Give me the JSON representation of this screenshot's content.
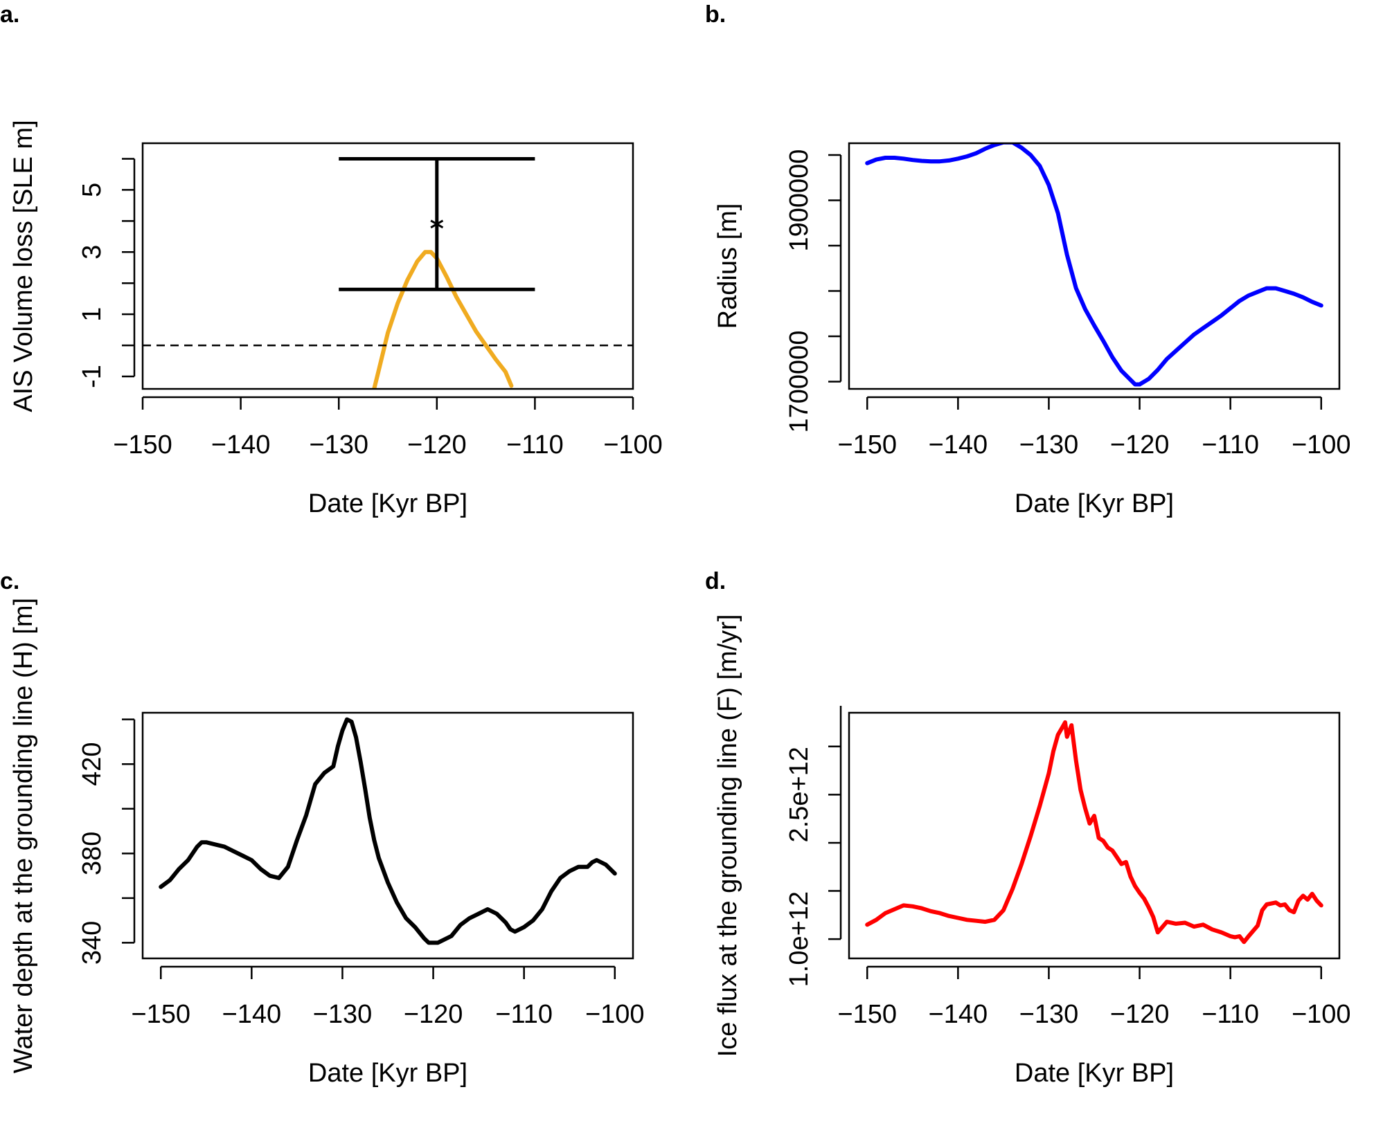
{
  "chart_data": [
    {
      "panel": "a.",
      "type": "line",
      "xlabel": "Date [Kyr BP]",
      "ylabel": "AIS Volume loss [SLE m]",
      "xlim": [
        -150,
        -100
      ],
      "ylim": [
        -1.4,
        6.5
      ],
      "x_ticks": [
        -150,
        -140,
        -130,
        -120,
        -110,
        -100
      ],
      "x_tick_labels": [
        "−150",
        "−140",
        "−130",
        "−120",
        "−110",
        "−100"
      ],
      "y_ticks": [
        -1,
        0,
        1,
        2,
        3,
        4,
        5,
        6
      ],
      "y_tick_labels": [
        {
          "value": -1,
          "text": "-1"
        },
        {
          "value": 1,
          "text": "1"
        },
        {
          "value": 3,
          "text": "3"
        },
        {
          "value": 5,
          "text": "5"
        }
      ],
      "hline": {
        "y": 0,
        "style": "dashed"
      },
      "errorbar": {
        "x": -120,
        "y": 3.9,
        "low": 1.8,
        "high": 6.0,
        "cap_from": -130,
        "cap_to": -110
      },
      "series": [
        {
          "color": "#f0ab20",
          "x": [
            -126.4,
            -126,
            -125,
            -124,
            -123,
            -122,
            -121.2,
            -120.6,
            -120,
            -119,
            -118,
            -117,
            -116,
            -115,
            -114,
            -113,
            -112.4
          ],
          "y": [
            -1.4,
            -0.9,
            0.4,
            1.35,
            2.1,
            2.7,
            3.0,
            3.0,
            2.8,
            2.2,
            1.55,
            1.0,
            0.45,
            0.0,
            -0.45,
            -0.85,
            -1.3
          ]
        }
      ]
    },
    {
      "panel": "b.",
      "type": "line",
      "xlabel": "Date [Kyr BP]",
      "ylabel": "Radius [m]",
      "xlim": [
        -152,
        -98
      ],
      "ylim": [
        1692000,
        1963000
      ],
      "x_ticks": [
        -150,
        -140,
        -130,
        -120,
        -110,
        -100
      ],
      "x_tick_labels": [
        "−150",
        "−140",
        "−130",
        "−120",
        "−110",
        "−100"
      ],
      "y_ticks": [
        1700000,
        1750000,
        1800000,
        1850000,
        1900000,
        1950000
      ],
      "y_tick_labels": [
        {
          "value": 1700000,
          "text": "1700000"
        },
        {
          "value": 1900000,
          "text": "1900000"
        }
      ],
      "series": [
        {
          "color": "#0000ff",
          "x": [
            -150,
            -149,
            -148,
            -147,
            -146,
            -145,
            -144,
            -143,
            -142,
            -141,
            -140,
            -139,
            -138,
            -137,
            -136,
            -135,
            -134,
            -133,
            -132,
            -131,
            -130,
            -129,
            -128,
            -127,
            -126,
            -125,
            -124,
            -123,
            -122,
            -121,
            -120.5,
            -120,
            -119,
            -118,
            -117,
            -116,
            -115,
            -114,
            -113,
            -112,
            -111,
            -110,
            -109,
            -108,
            -107,
            -106,
            -105,
            -104,
            -103,
            -102,
            -101,
            -100
          ],
          "y": [
            1941000,
            1945000,
            1947000,
            1947000,
            1946000,
            1944500,
            1943500,
            1943000,
            1943000,
            1944000,
            1946000,
            1948500,
            1952000,
            1957000,
            1961000,
            1964000,
            1964000,
            1958000,
            1950000,
            1938000,
            1917000,
            1886000,
            1840000,
            1803000,
            1780000,
            1762000,
            1745000,
            1727000,
            1712000,
            1702000,
            1697000,
            1697000,
            1703000,
            1713000,
            1725000,
            1734000,
            1743000,
            1752000,
            1759000,
            1766000,
            1773000,
            1781000,
            1789000,
            1795000,
            1799000,
            1803000,
            1803000,
            1800000,
            1797000,
            1793000,
            1788000,
            1784000
          ]
        }
      ]
    },
    {
      "panel": "c.",
      "type": "line",
      "xlabel": "Date [Kyr BP]",
      "ylabel": "Water depth at the grounding line (H) [m]",
      "xlim": [
        -152,
        -98
      ],
      "ylim": [
        333,
        443
      ],
      "x_ticks": [
        -150,
        -140,
        -130,
        -120,
        -110,
        -100
      ],
      "x_tick_labels": [
        "−150",
        "−140",
        "−130",
        "−120",
        "−110",
        "−100"
      ],
      "y_ticks": [
        340,
        360,
        380,
        400,
        420,
        440
      ],
      "y_tick_labels": [
        {
          "value": 340,
          "text": "340"
        },
        {
          "value": 380,
          "text": "380"
        },
        {
          "value": 420,
          "text": "420"
        }
      ],
      "series": [
        {
          "color": "#000000",
          "x": [
            -150,
            -149,
            -148,
            -147,
            -146,
            -145.5,
            -145,
            -144,
            -143,
            -142,
            -141,
            -140,
            -139,
            -138,
            -137,
            -136,
            -135,
            -134,
            -133,
            -132,
            -131,
            -130.5,
            -130,
            -129.5,
            -129,
            -128.5,
            -128,
            -127.5,
            -127,
            -126.5,
            -126,
            -125,
            -124,
            -123,
            -122,
            -121,
            -120.5,
            -120,
            -119.5,
            -119,
            -118,
            -117,
            -116,
            -115,
            -114.5,
            -114,
            -113,
            -112,
            -111.5,
            -111,
            -110,
            -109,
            -108,
            -107,
            -106,
            -105,
            -104,
            -103,
            -102.5,
            -102,
            -101,
            -100
          ],
          "y": [
            365,
            368,
            373,
            377,
            383,
            385,
            385,
            384,
            383,
            381,
            379,
            377,
            373,
            370,
            369,
            374,
            386,
            397,
            411,
            416,
            419,
            428,
            435,
            440,
            439,
            432,
            421,
            409,
            396,
            386,
            378,
            367,
            358,
            351,
            347,
            342,
            340,
            340,
            340,
            341,
            343,
            348,
            351,
            353,
            354,
            355,
            353,
            349,
            346,
            345,
            347,
            350,
            355,
            363,
            369,
            372,
            374,
            374,
            376,
            377,
            375,
            371
          ]
        }
      ]
    },
    {
      "panel": "d.",
      "type": "line",
      "xlabel": "Date [Kyr BP]",
      "ylabel": "Ice flux at the grounding line (F) [m/yr]",
      "xlim": [
        -152,
        -98
      ],
      "ylim": [
        800000000000.0,
        3350000000000.0
      ],
      "x_ticks": [
        -150,
        -140,
        -130,
        -120,
        -110,
        -100
      ],
      "x_tick_labels": [
        "−150",
        "−140",
        "−130",
        "−120",
        "−110",
        "−100"
      ],
      "y_ticks": [
        1000000000000.0,
        1500000000000.0,
        2000000000000.0,
        2500000000000.0,
        3000000000000.0,
        3500000000000.0
      ],
      "y_tick_labels": [
        {
          "value": 1000000000000.0,
          "text": "1.0e+12"
        },
        {
          "value": 2500000000000.0,
          "text": "2.5e+12"
        }
      ],
      "series": [
        {
          "color": "#ff0000",
          "x": [
            -150,
            -149,
            -148,
            -147,
            -146,
            -145,
            -144,
            -143,
            -142,
            -141,
            -140,
            -139,
            -138,
            -137,
            -136,
            -135,
            -134,
            -133,
            -132,
            -131,
            -130,
            -129.5,
            -129,
            -128.5,
            -128.2,
            -128,
            -127.5,
            -127,
            -126.5,
            -126,
            -125.5,
            -125,
            -124.5,
            -124,
            -123.5,
            -123,
            -122.5,
            -122,
            -121.5,
            -121,
            -120.5,
            -120,
            -119.5,
            -119,
            -118.5,
            -118,
            -117,
            -116,
            -115,
            -114,
            -113,
            -112,
            -111,
            -110,
            -109.5,
            -109,
            -108.5,
            -108,
            -107,
            -106.5,
            -106,
            -105,
            -104.5,
            -104,
            -103.5,
            -103,
            -102.5,
            -102,
            -101.5,
            -101,
            -100.5,
            -100
          ],
          "y": [
            1150000000000.0,
            1200000000000.0,
            1270000000000.0,
            1310000000000.0,
            1350000000000.0,
            1340000000000.0,
            1320000000000.0,
            1290000000000.0,
            1270000000000.0,
            1240000000000.0,
            1220000000000.0,
            1200000000000.0,
            1190000000000.0,
            1180000000000.0,
            1200000000000.0,
            1300000000000.0,
            1520000000000.0,
            1780000000000.0,
            2070000000000.0,
            2380000000000.0,
            2720000000000.0,
            2950000000000.0,
            3120000000000.0,
            3200000000000.0,
            3250000000000.0,
            3100000000000.0,
            3220000000000.0,
            2850000000000.0,
            2550000000000.0,
            2360000000000.0,
            2200000000000.0,
            2280000000000.0,
            2050000000000.0,
            2020000000000.0,
            1950000000000.0,
            1920000000000.0,
            1850000000000.0,
            1780000000000.0,
            1800000000000.0,
            1650000000000.0,
            1550000000000.0,
            1480000000000.0,
            1420000000000.0,
            1330000000000.0,
            1230000000000.0,
            1070000000000.0,
            1180000000000.0,
            1160000000000.0,
            1170000000000.0,
            1130000000000.0,
            1150000000000.0,
            1100000000000.0,
            1070000000000.0,
            1030000000000.0,
            1020000000000.0,
            1030000000000.0,
            970000000000.0,
            1030000000000.0,
            1140000000000.0,
            1300000000000.0,
            1360000000000.0,
            1380000000000.0,
            1350000000000.0,
            1360000000000.0,
            1300000000000.0,
            1280000000000.0,
            1400000000000.0,
            1450000000000.0,
            1410000000000.0,
            1470000000000.0,
            1400000000000.0,
            1350000000000.0
          ]
        }
      ]
    }
  ]
}
